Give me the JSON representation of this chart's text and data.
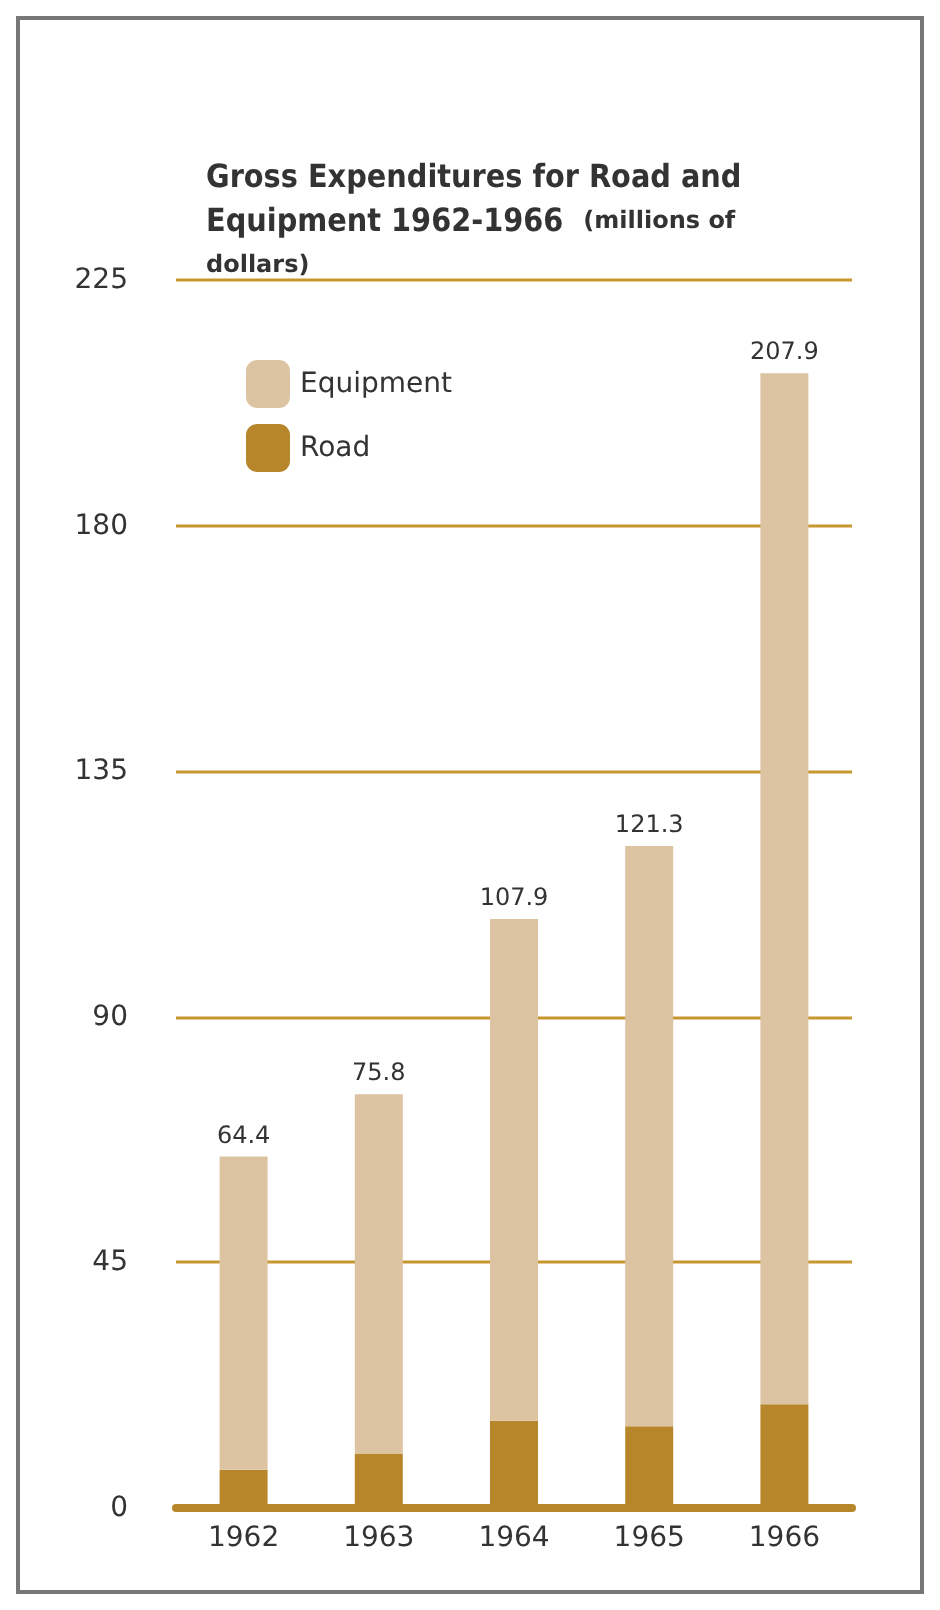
{
  "chart_data": {
    "type": "bar",
    "title": "Gross Expenditures for Road and Equipment 1962-1966",
    "subtitle": "(millions of dollars)",
    "categories": [
      "1962",
      "1963",
      "1964",
      "1965",
      "1966"
    ],
    "stacked": true,
    "series": [
      {
        "name": "Road",
        "color": "#b8862a",
        "values": [
          7,
          10,
          16,
          15,
          19
        ]
      },
      {
        "name": "Equipment",
        "color": "#dcc4a2",
        "values": [
          57.4,
          65.8,
          91.9,
          106.3,
          188.9
        ]
      }
    ],
    "totals": [
      "64.4",
      "75.8",
      "107.9",
      "121.3",
      "207.9"
    ],
    "ylim": [
      0,
      225
    ],
    "yticks": [
      0,
      45,
      90,
      135,
      180,
      225
    ],
    "grid": "y",
    "legend": "top left"
  }
}
